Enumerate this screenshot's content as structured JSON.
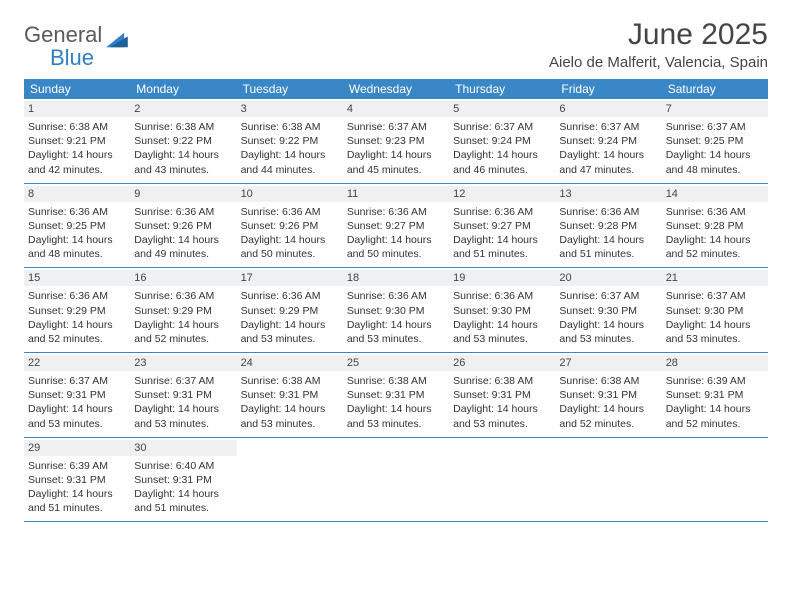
{
  "brand": {
    "word1": "General",
    "word2": "Blue",
    "shape_color": "#2f7fc2"
  },
  "title": {
    "month": "June 2025",
    "location": "Aielo de Malferit, Valencia, Spain"
  },
  "colors": {
    "header_bg": "#3a87c8",
    "header_text": "#ffffff",
    "daynum_bg": "#eef0f1",
    "border": "#3a87c8",
    "body_text": "#333333",
    "page_bg": "#ffffff"
  },
  "layout": {
    "columns": 7,
    "start_offset": 0,
    "days_in_month": 30
  },
  "dayNames": [
    "Sunday",
    "Monday",
    "Tuesday",
    "Wednesday",
    "Thursday",
    "Friday",
    "Saturday"
  ],
  "days": [
    {
      "n": 1,
      "sunrise": "6:38 AM",
      "sunset": "9:21 PM",
      "daylight": "14 hours and 42 minutes."
    },
    {
      "n": 2,
      "sunrise": "6:38 AM",
      "sunset": "9:22 PM",
      "daylight": "14 hours and 43 minutes."
    },
    {
      "n": 3,
      "sunrise": "6:38 AM",
      "sunset": "9:22 PM",
      "daylight": "14 hours and 44 minutes."
    },
    {
      "n": 4,
      "sunrise": "6:37 AM",
      "sunset": "9:23 PM",
      "daylight": "14 hours and 45 minutes."
    },
    {
      "n": 5,
      "sunrise": "6:37 AM",
      "sunset": "9:24 PM",
      "daylight": "14 hours and 46 minutes."
    },
    {
      "n": 6,
      "sunrise": "6:37 AM",
      "sunset": "9:24 PM",
      "daylight": "14 hours and 47 minutes."
    },
    {
      "n": 7,
      "sunrise": "6:37 AM",
      "sunset": "9:25 PM",
      "daylight": "14 hours and 48 minutes."
    },
    {
      "n": 8,
      "sunrise": "6:36 AM",
      "sunset": "9:25 PM",
      "daylight": "14 hours and 48 minutes."
    },
    {
      "n": 9,
      "sunrise": "6:36 AM",
      "sunset": "9:26 PM",
      "daylight": "14 hours and 49 minutes."
    },
    {
      "n": 10,
      "sunrise": "6:36 AM",
      "sunset": "9:26 PM",
      "daylight": "14 hours and 50 minutes."
    },
    {
      "n": 11,
      "sunrise": "6:36 AM",
      "sunset": "9:27 PM",
      "daylight": "14 hours and 50 minutes."
    },
    {
      "n": 12,
      "sunrise": "6:36 AM",
      "sunset": "9:27 PM",
      "daylight": "14 hours and 51 minutes."
    },
    {
      "n": 13,
      "sunrise": "6:36 AM",
      "sunset": "9:28 PM",
      "daylight": "14 hours and 51 minutes."
    },
    {
      "n": 14,
      "sunrise": "6:36 AM",
      "sunset": "9:28 PM",
      "daylight": "14 hours and 52 minutes."
    },
    {
      "n": 15,
      "sunrise": "6:36 AM",
      "sunset": "9:29 PM",
      "daylight": "14 hours and 52 minutes."
    },
    {
      "n": 16,
      "sunrise": "6:36 AM",
      "sunset": "9:29 PM",
      "daylight": "14 hours and 52 minutes."
    },
    {
      "n": 17,
      "sunrise": "6:36 AM",
      "sunset": "9:29 PM",
      "daylight": "14 hours and 53 minutes."
    },
    {
      "n": 18,
      "sunrise": "6:36 AM",
      "sunset": "9:30 PM",
      "daylight": "14 hours and 53 minutes."
    },
    {
      "n": 19,
      "sunrise": "6:36 AM",
      "sunset": "9:30 PM",
      "daylight": "14 hours and 53 minutes."
    },
    {
      "n": 20,
      "sunrise": "6:37 AM",
      "sunset": "9:30 PM",
      "daylight": "14 hours and 53 minutes."
    },
    {
      "n": 21,
      "sunrise": "6:37 AM",
      "sunset": "9:30 PM",
      "daylight": "14 hours and 53 minutes."
    },
    {
      "n": 22,
      "sunrise": "6:37 AM",
      "sunset": "9:31 PM",
      "daylight": "14 hours and 53 minutes."
    },
    {
      "n": 23,
      "sunrise": "6:37 AM",
      "sunset": "9:31 PM",
      "daylight": "14 hours and 53 minutes."
    },
    {
      "n": 24,
      "sunrise": "6:38 AM",
      "sunset": "9:31 PM",
      "daylight": "14 hours and 53 minutes."
    },
    {
      "n": 25,
      "sunrise": "6:38 AM",
      "sunset": "9:31 PM",
      "daylight": "14 hours and 53 minutes."
    },
    {
      "n": 26,
      "sunrise": "6:38 AM",
      "sunset": "9:31 PM",
      "daylight": "14 hours and 53 minutes."
    },
    {
      "n": 27,
      "sunrise": "6:38 AM",
      "sunset": "9:31 PM",
      "daylight": "14 hours and 52 minutes."
    },
    {
      "n": 28,
      "sunrise": "6:39 AM",
      "sunset": "9:31 PM",
      "daylight": "14 hours and 52 minutes."
    },
    {
      "n": 29,
      "sunrise": "6:39 AM",
      "sunset": "9:31 PM",
      "daylight": "14 hours and 51 minutes."
    },
    {
      "n": 30,
      "sunrise": "6:40 AM",
      "sunset": "9:31 PM",
      "daylight": "14 hours and 51 minutes."
    }
  ],
  "labels": {
    "sunrise": "Sunrise:",
    "sunset": "Sunset:",
    "daylight": "Daylight:"
  }
}
